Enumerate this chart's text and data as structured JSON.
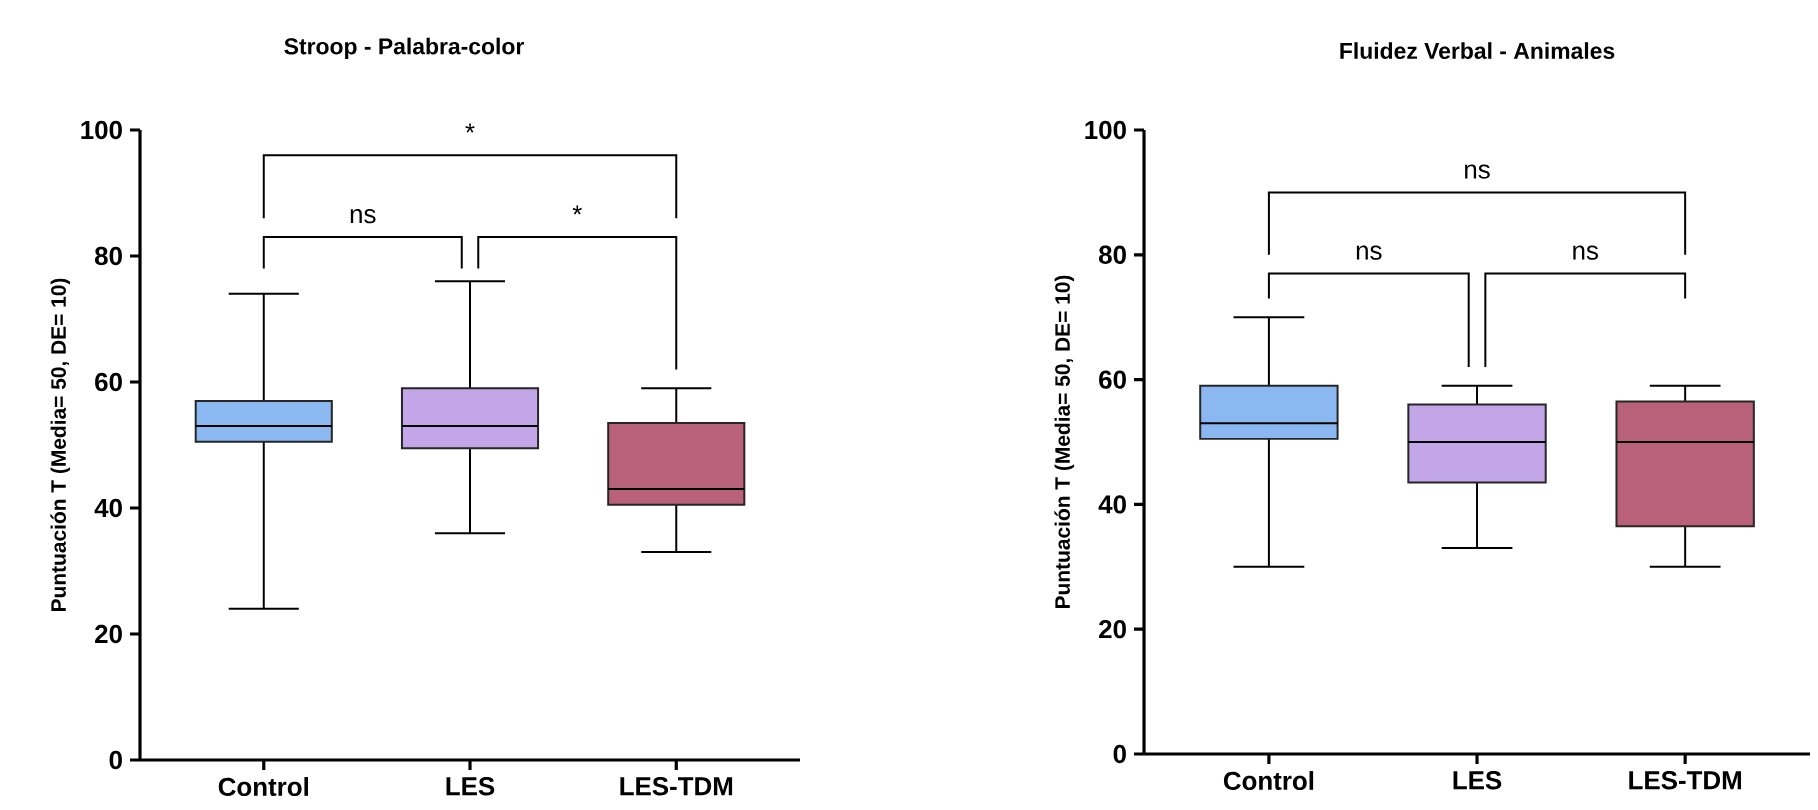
{
  "chart_data": [
    {
      "type": "box",
      "title": "Stroop - Palabra-color",
      "ylabel": "Puntuación T (Media= 50, DE= 10)",
      "categories": [
        "Control",
        "LES",
        "LES-TDM"
      ],
      "colors": [
        "#8cb8f2",
        "#c3a6e8",
        "#b9607a"
      ],
      "boxes": [
        {
          "low": 24,
          "q1": 50.5,
          "median": 53,
          "q3": 57,
          "high": 74
        },
        {
          "low": 36,
          "q1": 49.5,
          "median": 53,
          "q3": 59,
          "high": 76
        },
        {
          "low": 33,
          "q1": 40.5,
          "median": 43,
          "q3": 53.5,
          "high": 59
        }
      ],
      "ylim": [
        0,
        100
      ],
      "yticks": [
        0,
        20,
        40,
        60,
        80,
        100
      ],
      "annotations": [
        "*",
        "ns",
        "*"
      ]
    },
    {
      "type": "box",
      "title": "Fluidez Verbal - Animales",
      "ylabel": "Puntuación T (Media= 50, DE= 10)",
      "categories": [
        "Control",
        "LES",
        "LES-TDM"
      ],
      "colors": [
        "#8cb8f2",
        "#c3a6e8",
        "#b9607a"
      ],
      "boxes": [
        {
          "low": 30,
          "q1": 50.5,
          "median": 53,
          "q3": 59,
          "high": 70
        },
        {
          "low": 33,
          "q1": 43.5,
          "median": 50,
          "q3": 56,
          "high": 59
        },
        {
          "low": 30,
          "q1": 36.5,
          "median": 50,
          "q3": 56.5,
          "high": 59
        }
      ],
      "ylim": [
        0,
        100
      ],
      "yticks": [
        0,
        20,
        40,
        60,
        80,
        100
      ],
      "annotations": [
        "ns",
        "ns",
        "ns"
      ]
    }
  ]
}
